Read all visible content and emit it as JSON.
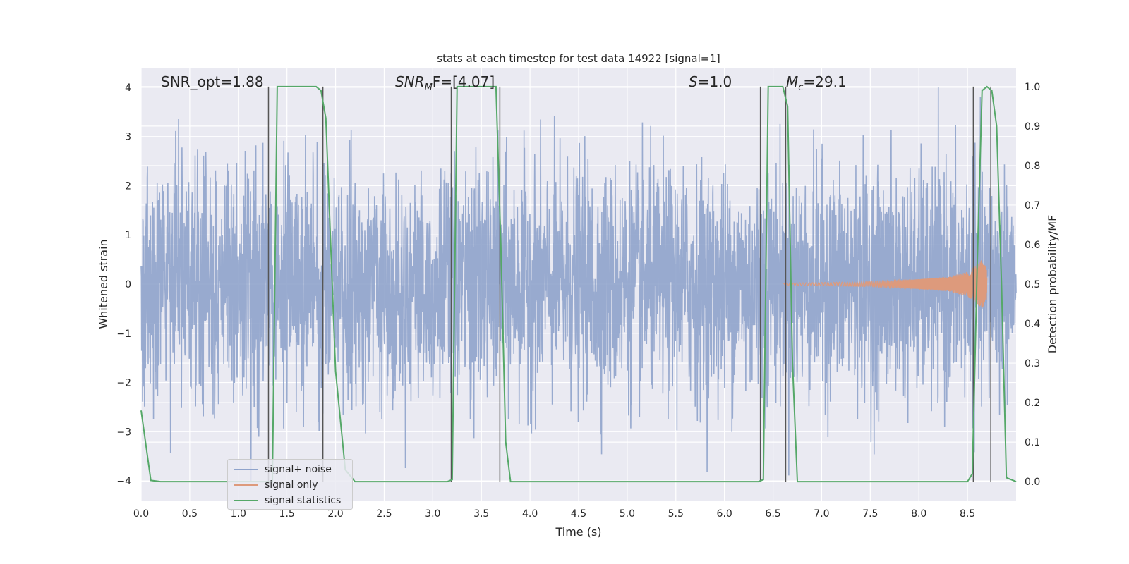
{
  "chart_data": {
    "type": "line",
    "title": "stats at each timestep for test data 14922 [signal=1]",
    "xlabel": "Time (s)",
    "ylabel": "Whitened strain",
    "y2label": "Detection probability/MF",
    "xlim": [
      0.0,
      9.0
    ],
    "ylim": [
      -4.4,
      4.4
    ],
    "y2lim": [
      -0.048,
      1.048
    ],
    "xticks": [
      "0.0",
      "0.5",
      "1.0",
      "1.5",
      "2.0",
      "2.5",
      "3.0",
      "3.5",
      "4.0",
      "4.5",
      "5.0",
      "5.5",
      "6.0",
      "6.5",
      "7.0",
      "7.5",
      "8.0",
      "8.5"
    ],
    "yticks": [
      "4",
      "3",
      "2",
      "1",
      "0",
      "−1",
      "−2",
      "−3",
      "−4"
    ],
    "y2ticks": [
      "1.0",
      "0.9",
      "0.8",
      "0.7",
      "0.6",
      "0.5",
      "0.4",
      "0.3",
      "0.2",
      "0.1",
      "0.0"
    ],
    "grid": true,
    "legend_placement": "lower-left",
    "annotations": {
      "snr_opt": "SNR_opt=1.88",
      "snr_mf_sym": "SNR",
      "snr_mf_sub": "M",
      "snr_mf_rest": "F=[4.07]",
      "s_sym": "S",
      "s_rest": "=1.0",
      "mc_sym": "M",
      "mc_sub": "c",
      "mc_rest": "=29.1"
    },
    "series": [
      {
        "name": "signal+ noise",
        "color": "#8fa3cb",
        "kind": "whitened noise, approx. gaussian, amplitude within ±4",
        "envelope": [
          -4.0,
          4.0
        ]
      },
      {
        "name": "signal only",
        "color": "#dd9a7c",
        "kind": "chirp",
        "t": [
          6.6,
          7.5,
          8.0,
          8.3,
          8.5,
          8.6,
          8.65,
          8.7
        ],
        "amplitude": [
          0.02,
          0.05,
          0.1,
          0.15,
          0.25,
          0.4,
          0.5,
          0.3
        ]
      },
      {
        "name": "signal statistics",
        "color": "#55a868",
        "axis": "right",
        "t": [
          0.0,
          0.1,
          0.2,
          1.3,
          1.35,
          1.4,
          1.8,
          1.85,
          1.9,
          2.0,
          2.1,
          2.2,
          3.15,
          3.2,
          3.25,
          3.35,
          3.65,
          3.7,
          3.75,
          3.8,
          3.85,
          6.35,
          6.4,
          6.45,
          6.6,
          6.65,
          6.7,
          6.75,
          8.5,
          8.55,
          8.6,
          8.65,
          8.7,
          8.75,
          8.8,
          8.85,
          8.9,
          9.0
        ],
        "y": [
          0.18,
          0.003,
          0.0,
          0.0,
          0.0,
          1.0,
          1.0,
          0.99,
          0.92,
          0.28,
          0.03,
          0.0,
          0.0,
          0.005,
          1.0,
          1.0,
          1.0,
          0.6,
          0.1,
          0.0,
          0.0,
          0.0,
          0.005,
          1.0,
          1.0,
          0.95,
          0.3,
          0.0,
          0.0,
          0.02,
          0.55,
          0.99,
          1.0,
          0.99,
          0.9,
          0.5,
          0.01,
          0.0
        ]
      }
    ],
    "vlines_t": [
      1.31,
      1.87,
      3.19,
      3.69,
      6.37,
      6.63,
      8.56,
      8.74
    ],
    "vline_color": "#555555"
  }
}
